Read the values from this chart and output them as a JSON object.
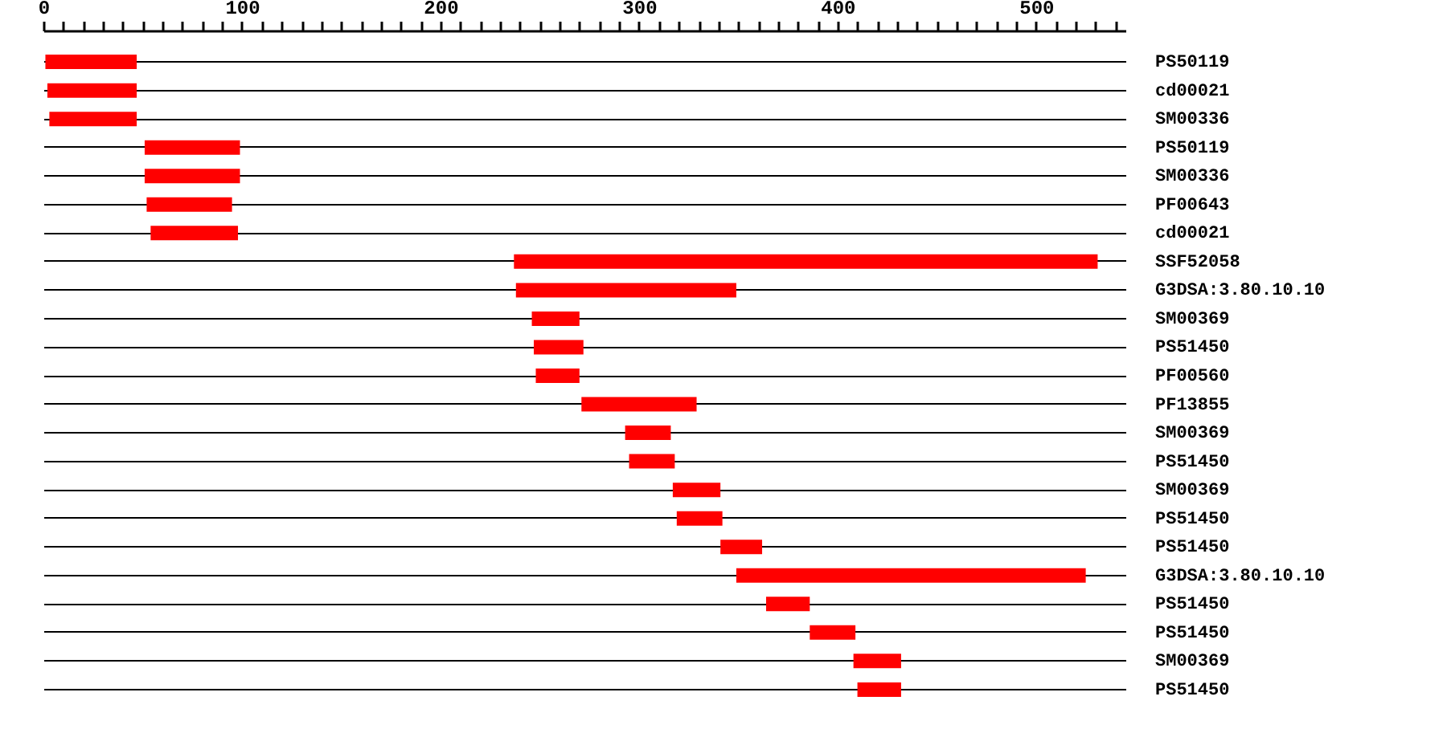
{
  "chart_data": {
    "type": "bar",
    "orientation": "horizontal",
    "grid": "y",
    "color": "#ff0000",
    "categories": [
      "PS50119",
      "cd00021",
      "SM00336",
      "PS50119",
      "SM00336",
      "PF00643",
      "cd00021",
      "SSF52058",
      "G3DSA:3.80.10.10",
      "SM00369",
      "PS51450",
      "PF00560",
      "PF13855",
      "SM00369",
      "PS51450",
      "SM00369",
      "PS51450",
      "PS51450",
      "G3DSA:3.80.10.10",
      "PS51450",
      "PS51450",
      "SM00369",
      "PS51450"
    ],
    "base": [
      1,
      2,
      3,
      51,
      51,
      52,
      54,
      237,
      238,
      246,
      247,
      248,
      271,
      293,
      295,
      317,
      319,
      341,
      349,
      364,
      386,
      408,
      410
    ],
    "values": [
      46,
      45,
      44,
      48,
      48,
      43,
      44,
      294,
      111,
      24,
      25,
      22,
      58,
      23,
      23,
      24,
      23,
      21,
      176,
      22,
      23,
      24,
      22
    ],
    "xlim": [
      0,
      545
    ],
    "xticks": [
      0,
      {
        "value": 10,
        "label": null
      },
      {
        "value": 20,
        "label": null
      },
      {
        "value": 30,
        "label": null
      },
      {
        "value": 40,
        "label": null
      },
      {
        "value": 50,
        "label": null
      },
      {
        "value": 60,
        "label": null
      },
      {
        "value": 70,
        "label": null
      },
      {
        "value": 80,
        "label": null
      },
      {
        "value": 90,
        "label": null
      },
      100,
      {
        "value": 110,
        "label": null
      },
      {
        "value": 120,
        "label": null
      },
      {
        "value": 130,
        "label": null
      },
      {
        "value": 140,
        "label": null
      },
      {
        "value": 150,
        "label": null
      },
      {
        "value": 160,
        "label": null
      },
      {
        "value": 170,
        "label": null
      },
      {
        "value": 180,
        "label": null
      },
      {
        "value": 190,
        "label": null
      },
      200,
      {
        "value": 210,
        "label": null
      },
      {
        "value": 220,
        "label": null
      },
      {
        "value": 230,
        "label": null
      },
      {
        "value": 240,
        "label": null
      },
      {
        "value": 250,
        "label": null
      },
      {
        "value": 260,
        "label": null
      },
      {
        "value": 270,
        "label": null
      },
      {
        "value": 280,
        "label": null
      },
      {
        "value": 290,
        "label": null
      },
      300,
      {
        "value": 310,
        "label": null
      },
      {
        "value": 320,
        "label": null
      },
      {
        "value": 330,
        "label": null
      },
      {
        "value": 340,
        "label": null
      },
      {
        "value": 350,
        "label": null
      },
      {
        "value": 360,
        "label": null
      },
      {
        "value": 370,
        "label": null
      },
      {
        "value": 380,
        "label": null
      },
      {
        "value": 390,
        "label": null
      },
      400,
      {
        "value": 410,
        "label": null
      },
      {
        "value": 420,
        "label": null
      },
      {
        "value": 430,
        "label": null
      },
      {
        "value": 440,
        "label": null
      },
      {
        "value": 450,
        "label": null
      },
      {
        "value": 460,
        "label": null
      },
      {
        "value": 470,
        "label": null
      },
      {
        "value": 480,
        "label": null
      },
      {
        "value": 490,
        "label": null
      },
      500,
      {
        "value": 510,
        "label": null
      },
      {
        "value": 520,
        "label": null
      },
      {
        "value": 530,
        "label": null
      },
      {
        "value": 540,
        "label": null
      }
    ]
  }
}
